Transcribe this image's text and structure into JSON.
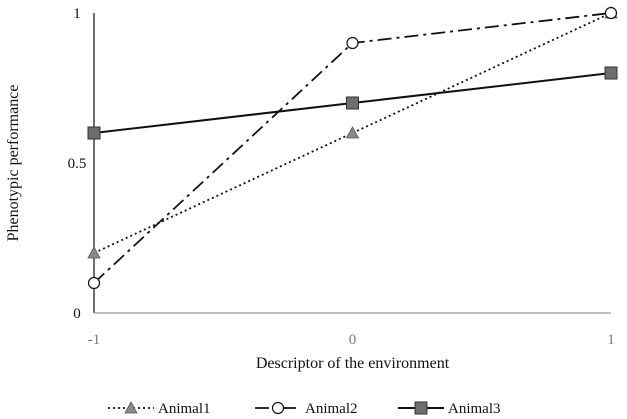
{
  "chart_data": {
    "type": "line",
    "title": "",
    "xlabel": "Descriptor of the environment",
    "ylabel": "Phenotypic performance",
    "x": [
      -1,
      0,
      1
    ],
    "xlim": [
      -1,
      1
    ],
    "ylim": [
      0,
      1
    ],
    "xticks": [
      "-1",
      "0",
      "1"
    ],
    "yticks": [
      "0",
      "0.5",
      "1"
    ],
    "grid": false,
    "legend_position": "bottom",
    "series": [
      {
        "name": "Animal1",
        "values": [
          0.2,
          0.6,
          1.0
        ],
        "marker": "triangle",
        "line_style": "dotted",
        "marker_color": "#8a8a8a",
        "line_color": "#111111"
      },
      {
        "name": "Animal2",
        "values": [
          0.1,
          0.9,
          1.0
        ],
        "marker": "circle",
        "line_style": "dash-dot",
        "marker_color": "#ffffff",
        "line_color": "#111111"
      },
      {
        "name": "Animal3",
        "values": [
          0.6,
          0.7,
          0.8
        ],
        "marker": "square",
        "line_style": "solid",
        "marker_color": "#6e6e6e",
        "line_color": "#111111"
      }
    ]
  }
}
